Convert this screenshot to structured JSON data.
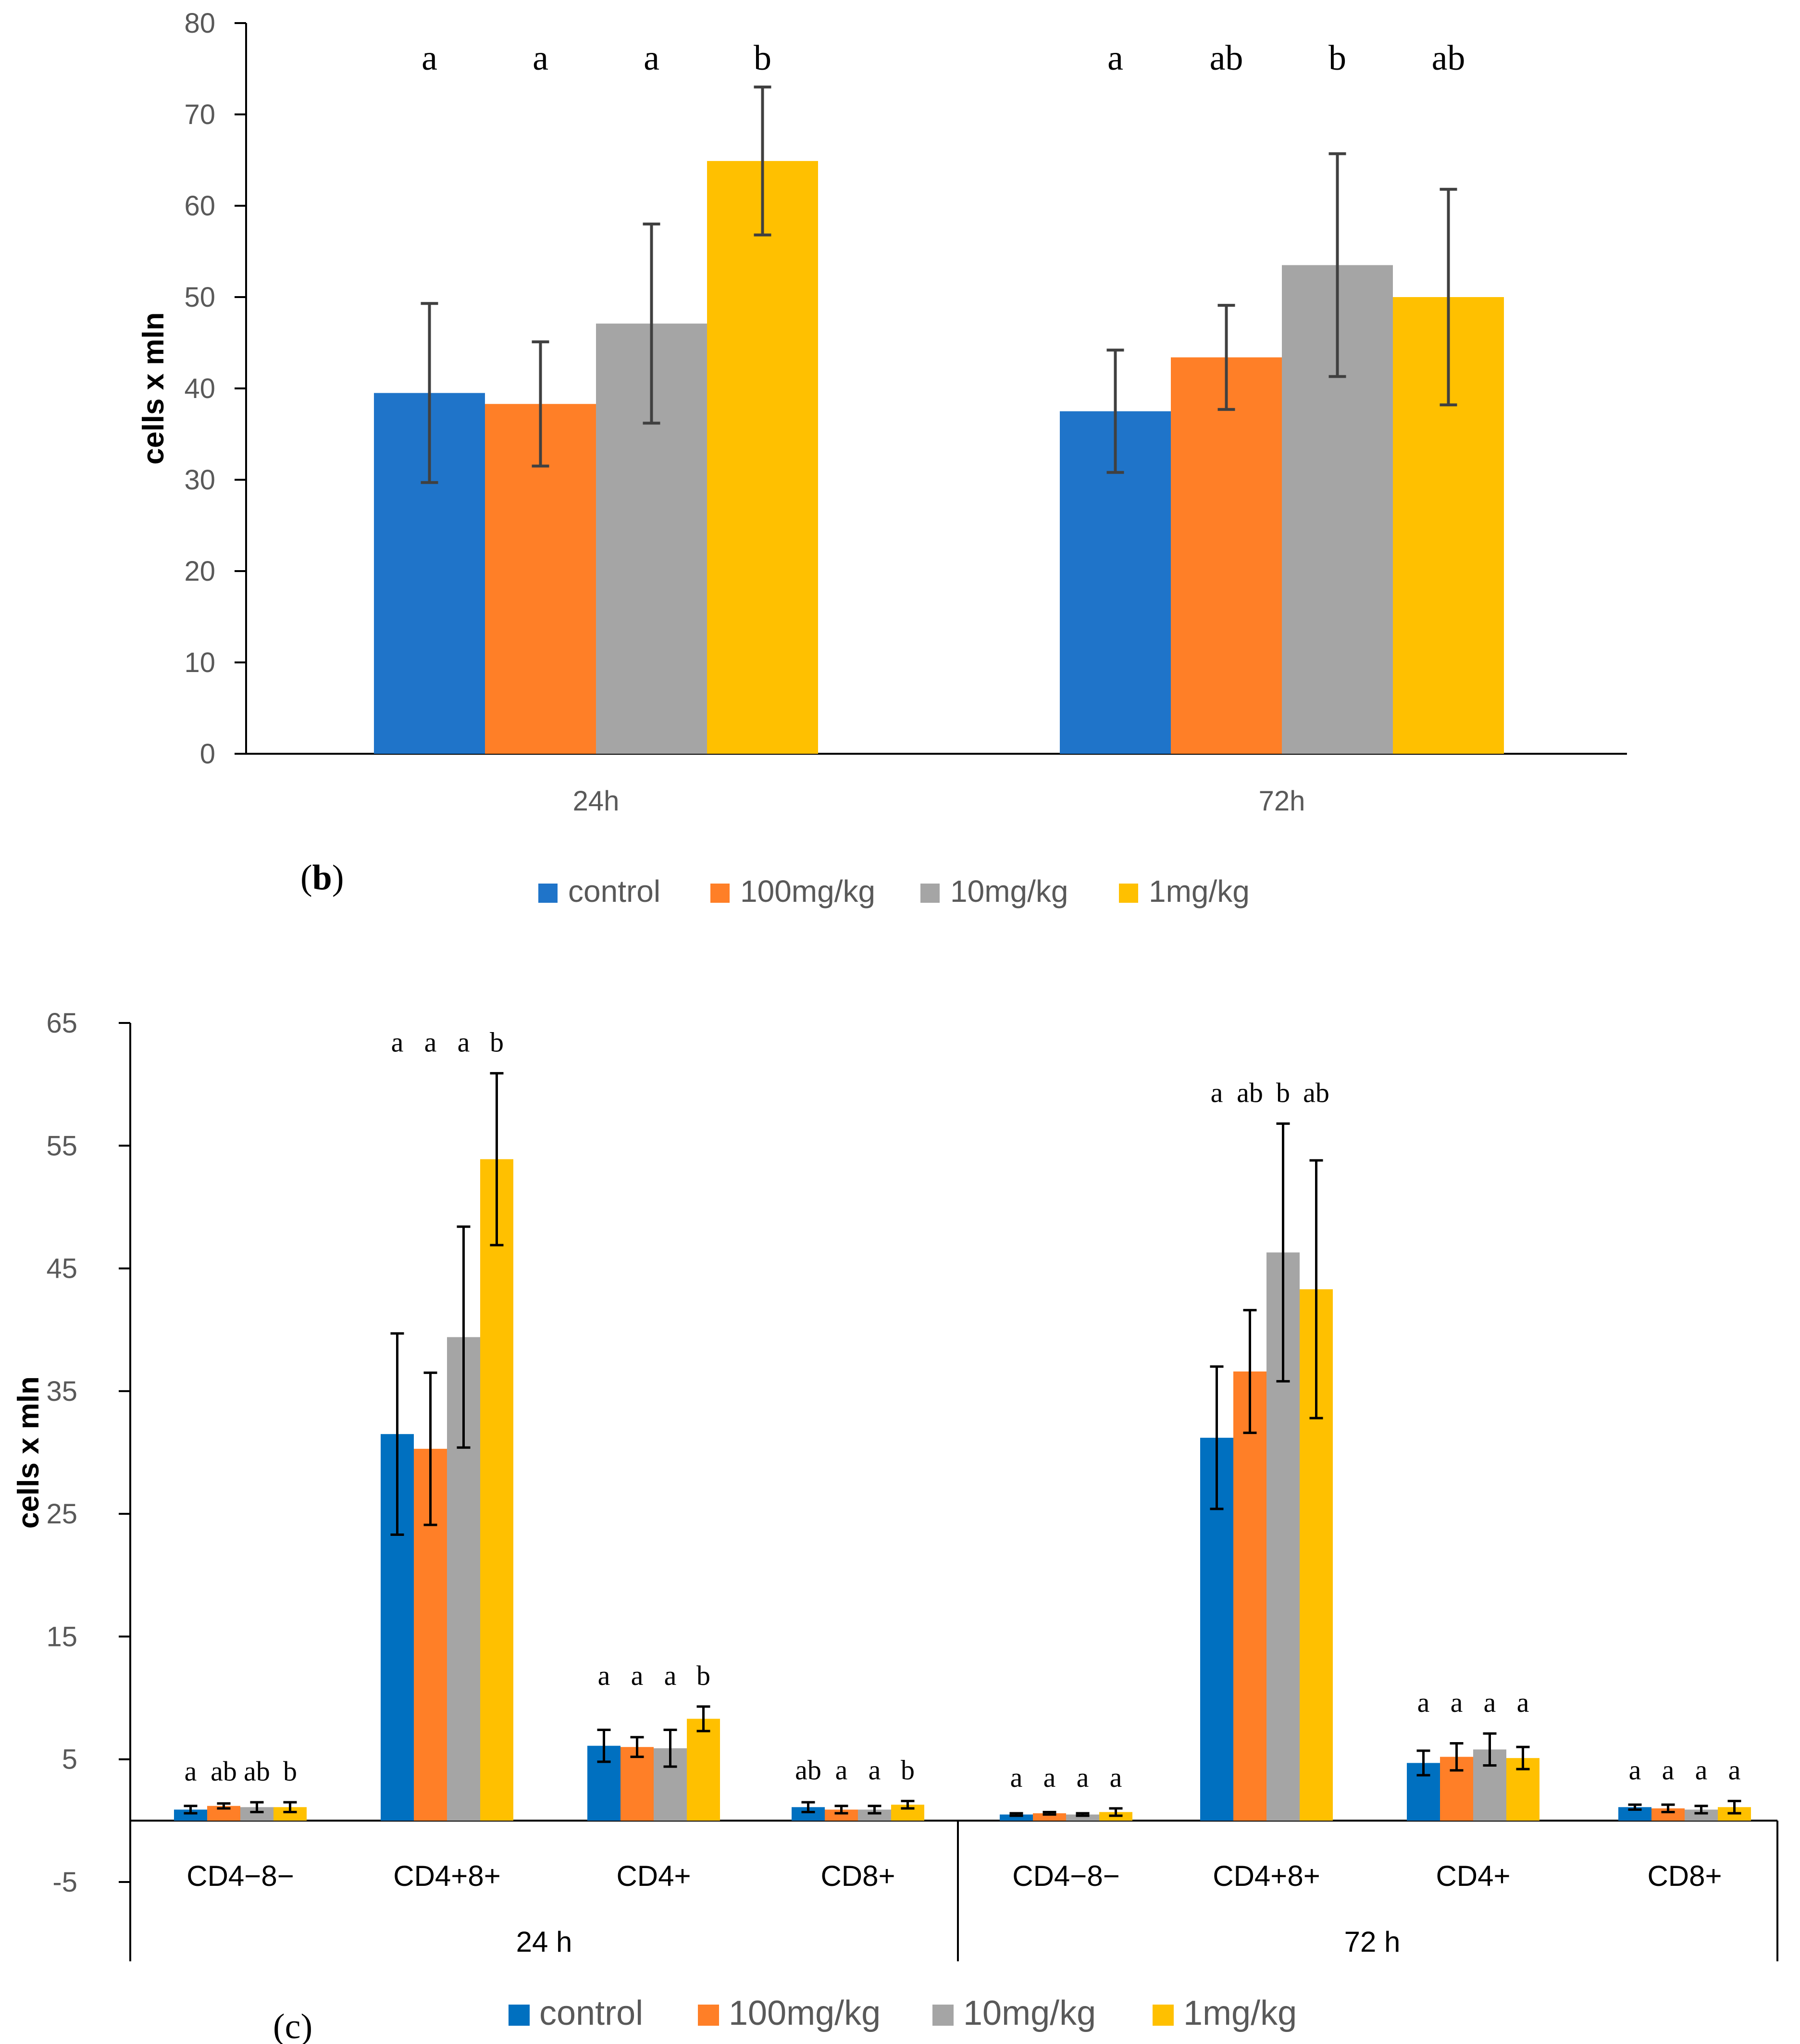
{
  "colors": {
    "control_b": "#1F74C9",
    "control_c": "#0070C0",
    "mg100": "#FF7F27",
    "mg10": "#A5A5A5",
    "mg1": "#FFC000",
    "axis": "#000000",
    "error_b": "#404040",
    "error_c": "#000000"
  },
  "chart_data": [
    {
      "type": "bar",
      "panel_label_letter": "b",
      "panel_label_open": "(",
      "panel_label_close": ")",
      "ylabel": "cells x mln",
      "ylim": [
        0,
        80
      ],
      "yticks": [
        "0",
        "10",
        "20",
        "30",
        "40",
        "50",
        "60",
        "70",
        "80"
      ],
      "categories": [
        "24h",
        "72h"
      ],
      "series": [
        {
          "name": "control",
          "values": [
            39.5,
            37.5
          ],
          "errors": [
            9.8,
            6.7
          ],
          "letters": [
            "a",
            "a"
          ]
        },
        {
          "name": "100mg/kg",
          "values": [
            38.3,
            43.4
          ],
          "errors": [
            6.8,
            5.7
          ],
          "letters": [
            "a",
            "ab"
          ]
        },
        {
          "name": "10mg/kg",
          "values": [
            47.1,
            53.5
          ],
          "errors": [
            10.9,
            12.2
          ],
          "letters": [
            "a",
            "b"
          ]
        },
        {
          "name": "1mg/kg",
          "values": [
            64.9,
            50.0
          ],
          "errors": [
            8.1,
            11.8
          ],
          "letters": [
            "b",
            "ab"
          ]
        }
      ],
      "legend": [
        "control",
        "100mg/kg",
        "10mg/kg",
        "1mg/kg"
      ],
      "legend_position": "bottom"
    },
    {
      "type": "bar",
      "panel_label_letter": "c",
      "panel_label_open": "(",
      "panel_label_close": ")",
      "ylabel": "cells x mln",
      "ylim": [
        -5,
        65
      ],
      "yticks": [
        "-5",
        "5",
        "15",
        "25",
        "35",
        "45",
        "55",
        "65"
      ],
      "groups": [
        "24 h",
        "72 h"
      ],
      "categories": [
        "CD4−8−",
        "CD4+8+",
        "CD4+",
        "CD8+",
        "CD4−8−",
        "CD4+8+",
        "CD4+",
        "CD8+"
      ],
      "series": [
        {
          "name": "control",
          "values": [
            0.9,
            31.5,
            6.1,
            1.1,
            0.5,
            31.2,
            4.7,
            1.1
          ],
          "errors": [
            0.3,
            8.2,
            1.3,
            0.4,
            0.1,
            5.8,
            1.0,
            0.2
          ],
          "letters": [
            "a",
            "a",
            "a",
            "ab",
            "a",
            "a",
            "a",
            "a"
          ]
        },
        {
          "name": "100mg/kg",
          "values": [
            1.2,
            30.3,
            6.0,
            0.9,
            0.6,
            36.6,
            5.2,
            1.0
          ],
          "errors": [
            0.2,
            6.2,
            0.8,
            0.3,
            0.1,
            5.0,
            1.1,
            0.3
          ],
          "letters": [
            "ab",
            "a",
            "a",
            "a",
            "a",
            "ab",
            "a",
            "a"
          ]
        },
        {
          "name": "10mg/kg",
          "values": [
            1.1,
            39.4,
            5.9,
            0.9,
            0.5,
            46.3,
            5.8,
            0.9
          ],
          "errors": [
            0.4,
            9.0,
            1.5,
            0.3,
            0.1,
            10.5,
            1.3,
            0.3
          ],
          "letters": [
            "ab",
            "a",
            "a",
            "a",
            "a",
            "b",
            "a",
            "a"
          ]
        },
        {
          "name": "1mg/kg",
          "values": [
            1.1,
            53.9,
            8.3,
            1.3,
            0.7,
            43.3,
            5.1,
            1.1
          ],
          "errors": [
            0.4,
            7.0,
            1.0,
            0.3,
            0.3,
            10.5,
            0.9,
            0.5
          ],
          "letters": [
            "b",
            "b",
            "b",
            "b",
            "a",
            "ab",
            "a",
            "a"
          ]
        }
      ],
      "legend": [
        "control",
        "100mg/kg",
        "10mg/kg",
        "1mg/kg"
      ],
      "legend_position": "bottom"
    }
  ]
}
